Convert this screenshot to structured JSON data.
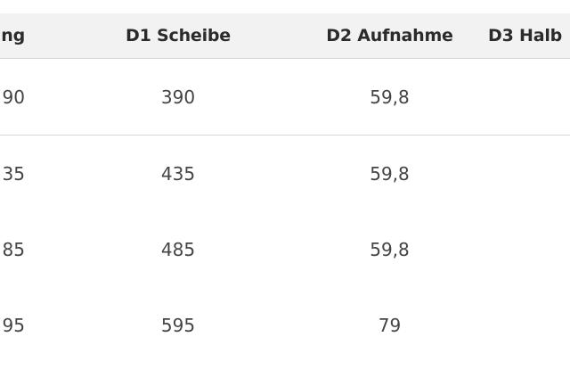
{
  "table": {
    "headers": [
      "ung",
      "D1 Scheibe",
      "D2 Aufnahme",
      "D3 Halb"
    ],
    "rows": [
      [
        "90",
        "390",
        "59,8",
        ""
      ],
      [
        "35",
        "435",
        "59,8",
        ""
      ],
      [
        "85",
        "485",
        "59,8",
        ""
      ],
      [
        "95",
        "595",
        "79",
        ""
      ]
    ]
  }
}
